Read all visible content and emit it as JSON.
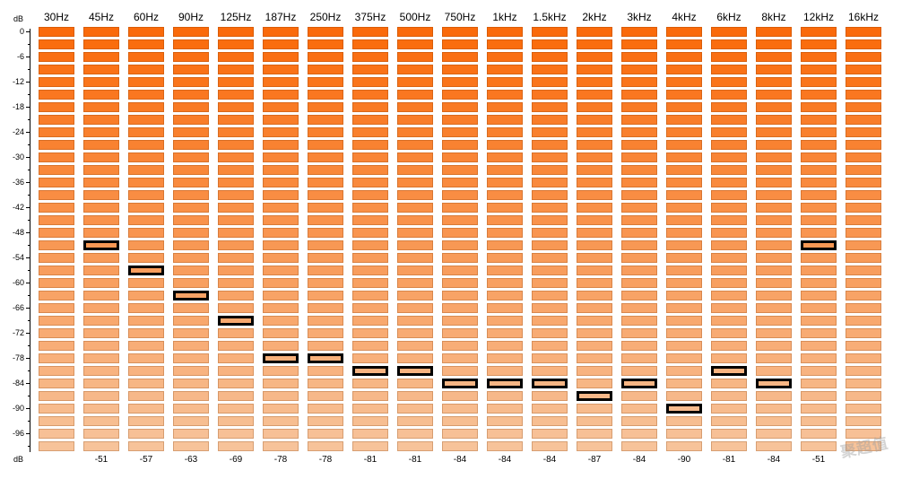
{
  "axis": {
    "unit_top": "dB",
    "unit_bottom": "dB",
    "y_ticks": [
      "0",
      "-6",
      "-12",
      "-18",
      "-24",
      "-30",
      "-36",
      "-42",
      "-48",
      "-54",
      "-60",
      "-66",
      "-72",
      "-78",
      "-84",
      "-90",
      "-96"
    ]
  },
  "levels_per_band": 34,
  "level_step_db": 3,
  "colors": {
    "top": "#fa6a0a",
    "bottom": "#f7c39a",
    "peak_border": "#000000"
  },
  "bands": [
    {
      "freq": "30Hz",
      "peak_db": null,
      "peak_label": ""
    },
    {
      "freq": "45Hz",
      "peak_db": -51,
      "peak_label": "-51"
    },
    {
      "freq": "60Hz",
      "peak_db": -57,
      "peak_label": "-57"
    },
    {
      "freq": "90Hz",
      "peak_db": -63,
      "peak_label": "-63"
    },
    {
      "freq": "125Hz",
      "peak_db": -69,
      "peak_label": "-69"
    },
    {
      "freq": "187Hz",
      "peak_db": -78,
      "peak_label": "-78"
    },
    {
      "freq": "250Hz",
      "peak_db": -78,
      "peak_label": "-78"
    },
    {
      "freq": "375Hz",
      "peak_db": -81,
      "peak_label": "-81"
    },
    {
      "freq": "500Hz",
      "peak_db": -81,
      "peak_label": "-81"
    },
    {
      "freq": "750Hz",
      "peak_db": -84,
      "peak_label": "-84"
    },
    {
      "freq": "1kHz",
      "peak_db": -84,
      "peak_label": "-84"
    },
    {
      "freq": "1.5kHz",
      "peak_db": -84,
      "peak_label": "-84"
    },
    {
      "freq": "2kHz",
      "peak_db": -87,
      "peak_label": "-87"
    },
    {
      "freq": "3kHz",
      "peak_db": -84,
      "peak_label": "-84"
    },
    {
      "freq": "4kHz",
      "peak_db": -90,
      "peak_label": "-90"
    },
    {
      "freq": "6kHz",
      "peak_db": -81,
      "peak_label": "-81"
    },
    {
      "freq": "8kHz",
      "peak_db": -84,
      "peak_label": "-84"
    },
    {
      "freq": "12kHz",
      "peak_db": -51,
      "peak_label": "-51"
    },
    {
      "freq": "16kHz",
      "peak_db": null,
      "peak_label": ""
    }
  ],
  "watermark": "聚超值"
}
